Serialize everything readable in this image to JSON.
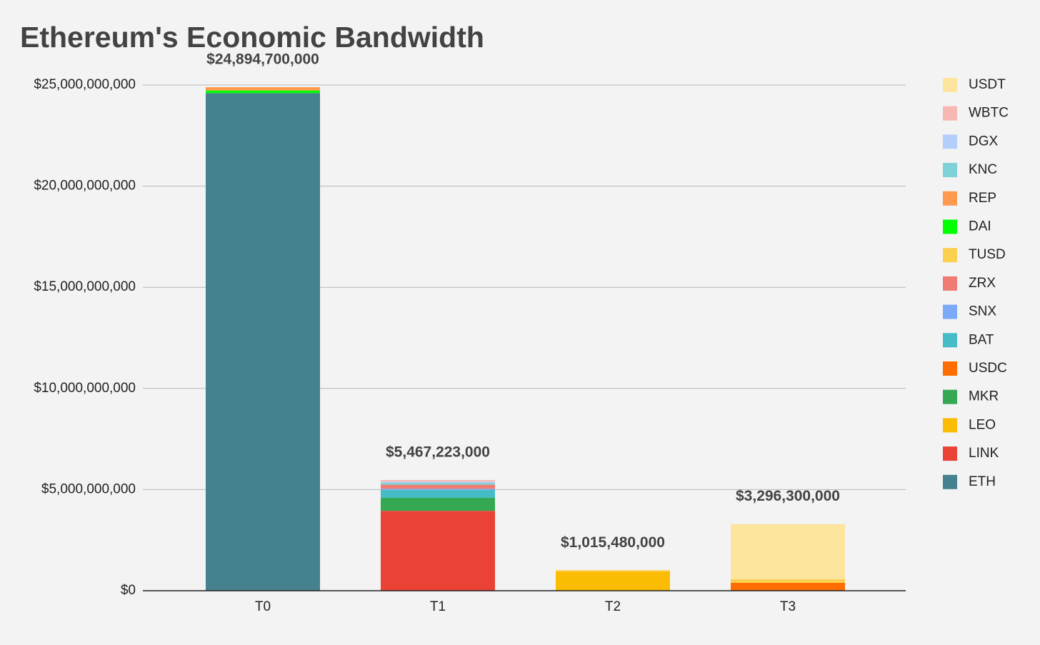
{
  "chart_data": {
    "type": "stacked-bar",
    "title": "Ethereum's Economic Bandwidth",
    "categories": [
      "T0",
      "T1",
      "T2",
      "T3"
    ],
    "series": [
      {
        "name": "ETH",
        "color": "#45818e",
        "values": [
          24600000000,
          0,
          0,
          0
        ]
      },
      {
        "name": "LINK",
        "color": "#ea4335",
        "values": [
          0,
          3950000000,
          0,
          0
        ]
      },
      {
        "name": "LEO",
        "color": "#fbbc04",
        "values": [
          0,
          0,
          950000000,
          0
        ]
      },
      {
        "name": "MKR",
        "color": "#34a853",
        "values": [
          0,
          640000000,
          0,
          0
        ]
      },
      {
        "name": "USDC",
        "color": "#ff6d01",
        "values": [
          0,
          0,
          0,
          390000000
        ]
      },
      {
        "name": "BAT",
        "color": "#46bdc6",
        "values": [
          0,
          400000000,
          0,
          0
        ]
      },
      {
        "name": "SNX",
        "color": "#7baaf7",
        "values": [
          0,
          50000000,
          0,
          0
        ]
      },
      {
        "name": "ZRX",
        "color": "#f07b72",
        "values": [
          0,
          200000000,
          0,
          0
        ]
      },
      {
        "name": "TUSD",
        "color": "#fcd04f",
        "values": [
          0,
          0,
          65000000,
          180000000
        ]
      },
      {
        "name": "DAI",
        "color": "#00ff00",
        "values": [
          130000000,
          0,
          0,
          0
        ]
      },
      {
        "name": "REP",
        "color": "#ff994d",
        "values": [
          160000000,
          0,
          0,
          0
        ]
      },
      {
        "name": "KNC",
        "color": "#7ed1d7",
        "values": [
          0,
          100000000,
          0,
          0
        ]
      },
      {
        "name": "DGX",
        "color": "#b3cefb",
        "values": [
          0,
          50000000,
          0,
          0
        ]
      },
      {
        "name": "WBTC",
        "color": "#f7b7b2",
        "values": [
          0,
          80000000,
          0,
          0
        ]
      },
      {
        "name": "USDT",
        "color": "#fde59d",
        "values": [
          0,
          0,
          0,
          2720000000
        ]
      }
    ],
    "totals": [
      24894700000,
      5467223000,
      1015480000,
      3296300000
    ],
    "total_labels": [
      "$24,894,700,000",
      "$5,467,223,000",
      "$1,015,480,000",
      "$3,296,300,000"
    ],
    "ylim": [
      0,
      25000000000
    ],
    "yticks": [
      {
        "value": 0,
        "label": "$0"
      },
      {
        "value": 5000000000,
        "label": "$5,000,000,000"
      },
      {
        "value": 10000000000,
        "label": "$10,000,000,000"
      },
      {
        "value": 15000000000,
        "label": "$15,000,000,000"
      },
      {
        "value": 20000000000,
        "label": "$20,000,000,000"
      },
      {
        "value": 25000000000,
        "label": "$25,000,000,000"
      }
    ],
    "grid": true
  }
}
